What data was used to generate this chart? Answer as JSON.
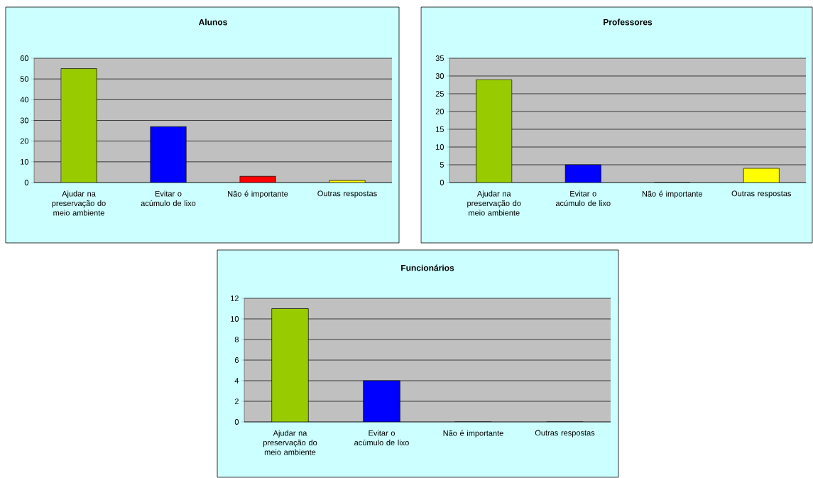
{
  "chart_data": [
    {
      "type": "bar",
      "title": "Alunos",
      "categories": [
        "Ajudar na preservação do meio ambiente",
        "Evitar o acúmulo de lixo",
        "Não é importante",
        "Outras respostas"
      ],
      "values": [
        55,
        27,
        3,
        1
      ],
      "colors": [
        "#99cc00",
        "#0000ff",
        "#ff0000",
        "#ffff00"
      ],
      "ylim": [
        0,
        60
      ],
      "yticks": [
        0,
        10,
        20,
        30,
        40,
        50,
        60
      ],
      "grid": "y"
    },
    {
      "type": "bar",
      "title": "Professores",
      "categories": [
        "Ajudar na preservação do meio ambiente",
        "Evitar o acúmulo de lixo",
        "Não é importante",
        "Outras respostas"
      ],
      "values": [
        29,
        5,
        0,
        4
      ],
      "colors": [
        "#99cc00",
        "#0000ff",
        "#ff0000",
        "#ffff00"
      ],
      "ylim": [
        0,
        35
      ],
      "yticks": [
        0,
        5,
        10,
        15,
        20,
        25,
        30,
        35
      ],
      "grid": "y"
    },
    {
      "type": "bar",
      "title": "Funcionários",
      "categories": [
        "Ajudar na preservação do meio ambiente",
        "Evitar o acúmulo de lixo",
        "Não é importante",
        "Outras respostas"
      ],
      "values": [
        11,
        4,
        0,
        0
      ],
      "colors": [
        "#99cc00",
        "#0000ff",
        "#ff0000",
        "#ffff00"
      ],
      "ylim": [
        0,
        12
      ],
      "yticks": [
        0,
        2,
        4,
        6,
        8,
        10,
        12
      ],
      "grid": "y"
    }
  ]
}
